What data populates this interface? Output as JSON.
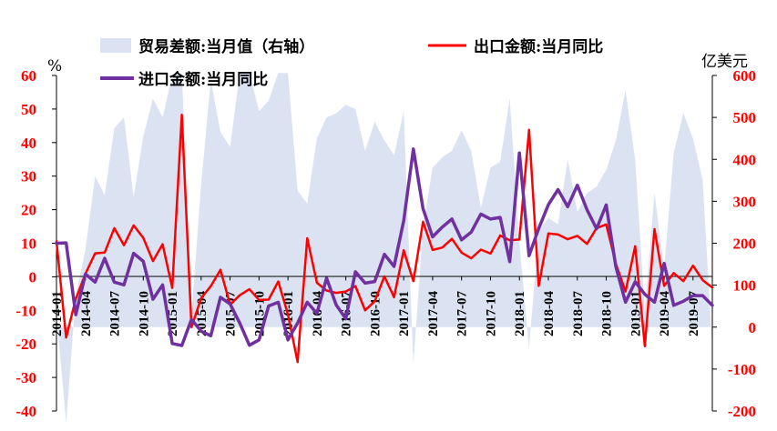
{
  "chart_data": {
    "type": "line",
    "title": "",
    "left_axis": {
      "label": "%",
      "range": [
        -40,
        60
      ],
      "ticks": [
        "60",
        "50",
        "40",
        "30",
        "20",
        "10",
        "0",
        "-10",
        "-20",
        "-30",
        "-40"
      ]
    },
    "right_axis": {
      "label": "亿美元",
      "range": [
        -200,
        600
      ],
      "ticks": [
        "600",
        "500",
        "400",
        "300",
        "200",
        "100",
        "0",
        "-100",
        "-200"
      ]
    },
    "x_tick_labels": [
      "2014-01",
      "2014-04",
      "2014-07",
      "2014-10",
      "2015-01",
      "2015-04",
      "2015-07",
      "2015-10",
      "2016-01",
      "2016-04",
      "2016-07",
      "2016-10",
      "2017-01",
      "2017-04",
      "2017-07",
      "2017-10",
      "2018-01",
      "2018-04",
      "2018-07",
      "2018-10",
      "2019-01",
      "2019-04",
      "2019-07"
    ],
    "months": [
      "2014-01",
      "2014-02",
      "2014-03",
      "2014-04",
      "2014-05",
      "2014-06",
      "2014-07",
      "2014-08",
      "2014-09",
      "2014-10",
      "2014-11",
      "2014-12",
      "2015-01",
      "2015-02",
      "2015-03",
      "2015-04",
      "2015-05",
      "2015-06",
      "2015-07",
      "2015-08",
      "2015-09",
      "2015-10",
      "2015-11",
      "2015-12",
      "2016-01",
      "2016-02",
      "2016-03",
      "2016-04",
      "2016-05",
      "2016-06",
      "2016-07",
      "2016-08",
      "2016-09",
      "2016-10",
      "2016-11",
      "2016-12",
      "2017-01",
      "2017-02",
      "2017-03",
      "2017-04",
      "2017-05",
      "2017-06",
      "2017-07",
      "2017-08",
      "2017-09",
      "2017-10",
      "2017-11",
      "2017-12",
      "2018-01",
      "2018-02",
      "2018-03",
      "2018-04",
      "2018-05",
      "2018-06",
      "2018-07",
      "2018-08",
      "2018-09",
      "2018-10",
      "2018-11",
      "2018-12",
      "2019-01",
      "2019-02",
      "2019-03",
      "2019-04",
      "2019-05",
      "2019-06",
      "2019-07",
      "2019-08",
      "2019-09"
    ],
    "legend": [
      "贸易差额:当月值（右轴）",
      "出口金额:当月同比",
      "进口金额:当月同比"
    ],
    "series": [
      {
        "name": "贸易差额:当月值（右轴）",
        "type": "area",
        "axis": "right",
        "color": "#dbe3f2",
        "values": [
          32,
          -230,
          77,
          185,
          360,
          315,
          475,
          500,
          310,
          455,
          545,
          500,
          600,
          606,
          30,
          340,
          590,
          465,
          430,
          606,
          606,
          515,
          540,
          606,
          606,
          325,
          295,
          450,
          500,
          510,
          530,
          520,
          420,
          490,
          445,
          410,
          515,
          -90,
          240,
          380,
          405,
          420,
          470,
          420,
          285,
          380,
          395,
          545,
          200,
          -50,
          230,
          260,
          245,
          400,
          275,
          320,
          335,
          375,
          445,
          565,
          400,
          40,
          320,
          140,
          415,
          510,
          450,
          350,
          -50
        ]
      },
      {
        "name": "出口金额:当月同比",
        "type": "line",
        "axis": "left",
        "color": "#ff0000",
        "values": [
          10.6,
          -18.1,
          -6.6,
          0.9,
          7.0,
          7.2,
          14.5,
          9.4,
          15.3,
          11.6,
          4.7,
          9.7,
          -3.3,
          48.3,
          -15.0,
          -6.4,
          -2.8,
          2.1,
          -8.3,
          -5.5,
          -3.7,
          -6.9,
          -6.8,
          -1.4,
          -11.2,
          -25.4,
          11.5,
          -1.8,
          -4.1,
          -4.8,
          -4.4,
          -2.8,
          -10.0,
          -7.3,
          0.1,
          -6.1,
          7.9,
          -1.3,
          16.4,
          8.0,
          8.7,
          11.3,
          7.2,
          5.5,
          8.1,
          6.9,
          12.3,
          10.9,
          11.1,
          43.8,
          -2.7,
          12.9,
          12.6,
          11.2,
          12.2,
          9.8,
          14.5,
          15.6,
          3.9,
          -4.4,
          9.1,
          -20.7,
          14.2,
          -2.7,
          1.1,
          -1.3,
          3.3,
          -1.0,
          -3.2
        ]
      },
      {
        "name": "进口金额:当月同比",
        "type": "line",
        "axis": "left",
        "color": "#7030a0",
        "values": [
          10.0,
          10.1,
          -11.3,
          0.8,
          -1.6,
          5.5,
          -1.6,
          -2.4,
          7.0,
          4.6,
          -6.7,
          -2.4,
          -19.9,
          -20.5,
          -12.7,
          -16.2,
          -17.6,
          -6.1,
          -8.1,
          -13.8,
          -20.4,
          -18.8,
          -8.7,
          -7.6,
          -18.8,
          -13.8,
          -7.6,
          -10.9,
          -0.4,
          -8.4,
          -12.5,
          1.5,
          -1.9,
          -1.4,
          6.7,
          3.1,
          16.7,
          38.1,
          20.3,
          11.9,
          14.8,
          17.2,
          11.0,
          13.3,
          18.7,
          17.2,
          17.7,
          4.5,
          36.9,
          6.3,
          14.4,
          21.5,
          26.0,
          20.9,
          27.3,
          20.0,
          14.3,
          21.4,
          3.0,
          -7.6,
          -1.5,
          -5.2,
          -7.6,
          4.0,
          -8.5,
          -7.3,
          -5.6,
          -5.6,
          -8.5
        ]
      }
    ]
  }
}
